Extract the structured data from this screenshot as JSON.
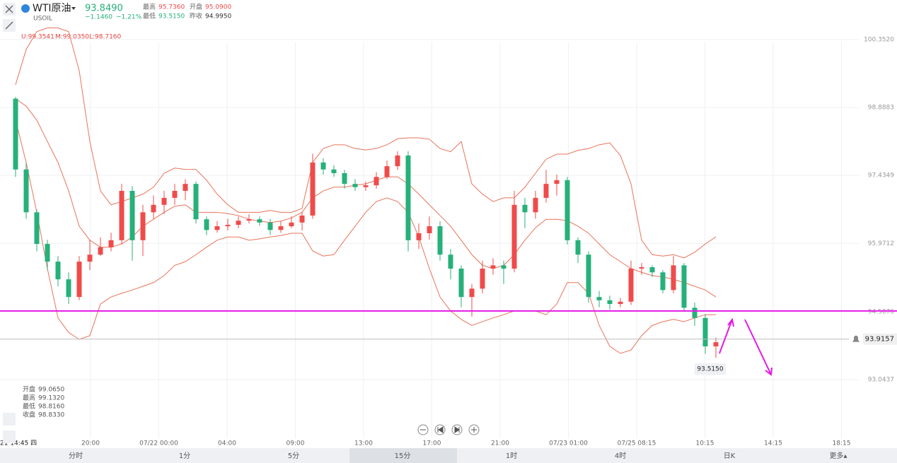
{
  "header": {
    "symbol": "WTI原油",
    "code": "USOIL",
    "price": "93.8490",
    "change": "−1.1460",
    "change_pct": "−1.21%",
    "stats": [
      {
        "label": "最高",
        "value": "95.7360"
      },
      {
        "label": "开盘",
        "value": "95.0900"
      },
      {
        "label": "最低",
        "value": "93.5150"
      },
      {
        "label": "昨收",
        "value": "94.9950"
      }
    ]
  },
  "chart_data": {
    "type": "candlestick",
    "band_legend": [
      "U:99.3541",
      "M:99.0350",
      "L:98.7160"
    ],
    "up_color": "#ef4b4b",
    "down_color": "#26b07a",
    "band_color": "#e8735a",
    "open": [
      99.08,
      97.56,
      96.64,
      95.96,
      95.58,
      95.2,
      94.82,
      95.58,
      95.73,
      95.89,
      96.04,
      97.1,
      96.04,
      96.64,
      96.8,
      96.95,
      97.1,
      97.25,
      96.49,
      96.26,
      96.34,
      96.37,
      96.46,
      96.49,
      96.42,
      96.26,
      96.34,
      96.42,
      96.57,
      97.71,
      97.56,
      97.48,
      97.25,
      97.18,
      97.22,
      97.4,
      97.63,
      97.86,
      96.04,
      96.19,
      96.34,
      95.73,
      95.43,
      94.82,
      95.0,
      95.43,
      95.5,
      95.43,
      96.8,
      96.64,
      96.95,
      97.25,
      97.33,
      96.04,
      95.73,
      94.82,
      94.75,
      94.67,
      94.72,
      95.43,
      95.46,
      95.35,
      94.97,
      95.5,
      94.59,
      94.37,
      93.76
    ],
    "high": [
      99.12,
      97.7,
      96.7,
      96.05,
      95.7,
      95.35,
      95.7,
      96.04,
      96.1,
      96.2,
      97.25,
      97.2,
      96.8,
      97.0,
      97.1,
      97.25,
      97.35,
      97.3,
      96.55,
      96.45,
      96.5,
      96.55,
      96.6,
      96.55,
      96.5,
      96.45,
      96.55,
      96.65,
      97.9,
      97.8,
      97.65,
      97.55,
      97.35,
      97.3,
      97.5,
      97.75,
      97.95,
      97.95,
      96.4,
      96.55,
      96.45,
      95.85,
      95.5,
      95.1,
      95.6,
      95.65,
      95.6,
      97.1,
      96.95,
      97.1,
      97.55,
      97.45,
      97.4,
      96.1,
      95.8,
      94.95,
      94.85,
      94.8,
      95.6,
      95.55,
      95.5,
      95.4,
      95.7,
      95.55,
      94.7,
      94.45,
      93.95
    ],
    "low": [
      97.4,
      96.5,
      95.8,
      95.4,
      95.05,
      94.67,
      94.75,
      95.4,
      95.7,
      95.8,
      95.95,
      95.6,
      95.7,
      96.5,
      96.6,
      96.8,
      96.9,
      96.4,
      96.15,
      96.2,
      96.25,
      96.3,
      96.4,
      96.35,
      96.15,
      96.2,
      96.3,
      96.25,
      96.5,
      97.45,
      97.4,
      97.15,
      97.1,
      97.1,
      97.15,
      97.35,
      97.55,
      95.8,
      95.85,
      96.05,
      95.6,
      95.2,
      94.6,
      94.4,
      94.9,
      95.3,
      95.1,
      95.35,
      96.3,
      96.5,
      96.85,
      97.0,
      95.95,
      95.55,
      94.7,
      94.6,
      94.55,
      94.6,
      94.65,
      95.3,
      95.25,
      94.9,
      94.9,
      94.5,
      94.2,
      93.6,
      93.515
    ],
    "close": [
      97.56,
      96.64,
      95.96,
      95.58,
      95.2,
      94.82,
      95.58,
      95.73,
      95.89,
      96.04,
      97.1,
      96.04,
      96.64,
      96.8,
      96.95,
      97.1,
      97.25,
      96.49,
      96.26,
      96.34,
      96.37,
      96.46,
      96.49,
      96.42,
      96.26,
      96.34,
      96.42,
      96.57,
      97.71,
      97.56,
      97.48,
      97.25,
      97.18,
      97.22,
      97.4,
      97.63,
      97.86,
      96.04,
      96.19,
      96.34,
      95.73,
      95.43,
      94.82,
      95.0,
      95.43,
      95.5,
      95.43,
      96.8,
      96.64,
      96.95,
      97.25,
      97.33,
      96.04,
      95.73,
      94.82,
      94.75,
      94.67,
      94.72,
      95.43,
      95.46,
      95.35,
      94.97,
      95.5,
      94.59,
      94.37,
      93.76,
      93.849
    ],
    "bands": {
      "upper": [
        99.38,
        100.14,
        100.52,
        100.6,
        100.6,
        100.52,
        99.68,
        98.16,
        97.1,
        96.8,
        96.87,
        96.95,
        97.03,
        97.18,
        97.48,
        97.59,
        97.56,
        97.56,
        97.33,
        97.03,
        96.8,
        96.64,
        96.64,
        96.64,
        96.68,
        96.64,
        96.64,
        96.72,
        97.71,
        98.01,
        98.09,
        98.09,
        98.01,
        97.98,
        98.01,
        98.09,
        98.22,
        98.24,
        98.24,
        98.21,
        98.01,
        97.94,
        98.16,
        97.25,
        97.03,
        96.87,
        96.95,
        96.95,
        97.18,
        97.48,
        97.78,
        97.89,
        97.89,
        97.97,
        98.01,
        98.09,
        98.13,
        97.86,
        97.25,
        96.04,
        95.73,
        95.7,
        95.73,
        95.66,
        95.78,
        95.96,
        96.11
      ],
      "mid": [
        99.08,
        98.92,
        98.62,
        98.16,
        97.71,
        97.1,
        96.34,
        96.04,
        95.89,
        95.89,
        95.96,
        96.11,
        96.34,
        96.49,
        96.64,
        96.77,
        96.8,
        96.64,
        96.64,
        96.64,
        96.61,
        96.57,
        96.49,
        96.45,
        96.42,
        96.45,
        96.52,
        96.64,
        96.95,
        97.1,
        97.18,
        97.18,
        97.22,
        97.25,
        97.33,
        97.4,
        97.4,
        97.25,
        97.03,
        96.8,
        96.57,
        96.34,
        96.04,
        95.73,
        95.5,
        95.43,
        95.5,
        95.73,
        96.04,
        96.31,
        96.49,
        96.49,
        96.46,
        96.34,
        96.19,
        95.96,
        95.73,
        95.58,
        95.43,
        95.35,
        95.28,
        95.25,
        95.2,
        95.13,
        95.05,
        94.97,
        94.82
      ],
      "lower": [
        98.62,
        97.71,
        96.64,
        95.43,
        94.37,
        94.06,
        93.91,
        93.99,
        94.67,
        94.82,
        94.9,
        94.97,
        95.05,
        95.13,
        95.28,
        95.5,
        95.58,
        95.73,
        95.89,
        96.04,
        96.11,
        96.11,
        96.04,
        96.07,
        96.11,
        96.14,
        96.19,
        96.19,
        95.81,
        95.7,
        95.73,
        96.04,
        96.34,
        96.64,
        96.87,
        96.95,
        96.87,
        96.64,
        96.11,
        95.43,
        94.82,
        94.52,
        94.34,
        94.21,
        94.29,
        94.37,
        94.44,
        94.52,
        94.52,
        94.52,
        94.44,
        94.67,
        95.13,
        95.13,
        94.9,
        94.21,
        93.76,
        93.61,
        93.68,
        93.99,
        94.21,
        94.29,
        94.34,
        94.29,
        94.37,
        94.44,
        94.44
      ]
    },
    "ylim": [
      91.71,
      101.2
    ],
    "yticks": [
      {
        "value": 100.352,
        "label": "100.3520"
      },
      {
        "value": 98.8883,
        "label": "98.8883"
      },
      {
        "value": 97.4349,
        "label": "97.4349"
      },
      {
        "value": 95.9712,
        "label": "95.9712"
      },
      {
        "value": 94.5076,
        "label": "94.5076"
      },
      {
        "value": 93.0437,
        "label": "93.0437"
      }
    ],
    "grid": true,
    "time_labels": [
      "20:00",
      "07/22 00:00",
      "04:00",
      "09:00",
      "13:00",
      "17:00",
      "21:00",
      "07/23 01:00",
      "07/25 08:15",
      "10:15",
      "14:15",
      "18:15"
    ],
    "cursor_time_label": "21 14:45 四",
    "hline": {
      "value": 94.52,
      "color": "#e619e6"
    },
    "price_line": {
      "value": 93.9157,
      "label": "93.9157"
    },
    "low_marker": {
      "value": 93.515,
      "label": "93.5150"
    },
    "ohlc_info": [
      {
        "label": "开盘",
        "value": "99.0650"
      },
      {
        "label": "最高",
        "value": "99.1320"
      },
      {
        "label": "最低",
        "value": "98.8160"
      },
      {
        "label": "收盘",
        "value": "98.8330"
      }
    ]
  },
  "tabs": [
    "分时",
    "1分",
    "5分",
    "15分",
    "1时",
    "4时",
    "日K",
    "更多▴"
  ]
}
